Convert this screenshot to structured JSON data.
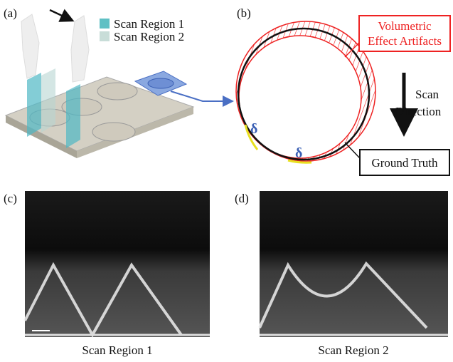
{
  "panels": {
    "a": {
      "label": "(a)",
      "legend": [
        "Scan Region 1",
        "Scan Region 2"
      ]
    },
    "b": {
      "label": "(b)",
      "artifact_label": [
        "Volumetric",
        "Effect Artifacts"
      ],
      "direction_label": [
        "Scan",
        "Direction"
      ],
      "truth_label": "Ground Truth",
      "offset_symbol": "δ"
    },
    "c": {
      "label": "(c)",
      "caption": "Scan Region 1"
    },
    "d": {
      "label": "(d)",
      "caption": "Scan Region 2"
    }
  }
}
